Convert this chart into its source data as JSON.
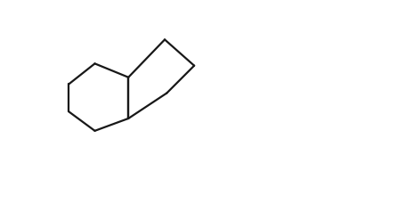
{
  "background_color": "#ffffff",
  "line_color": "#1a1a1a",
  "line_width": 1.8,
  "figsize": [
    4.55,
    2.29
  ],
  "dpi": 100
}
